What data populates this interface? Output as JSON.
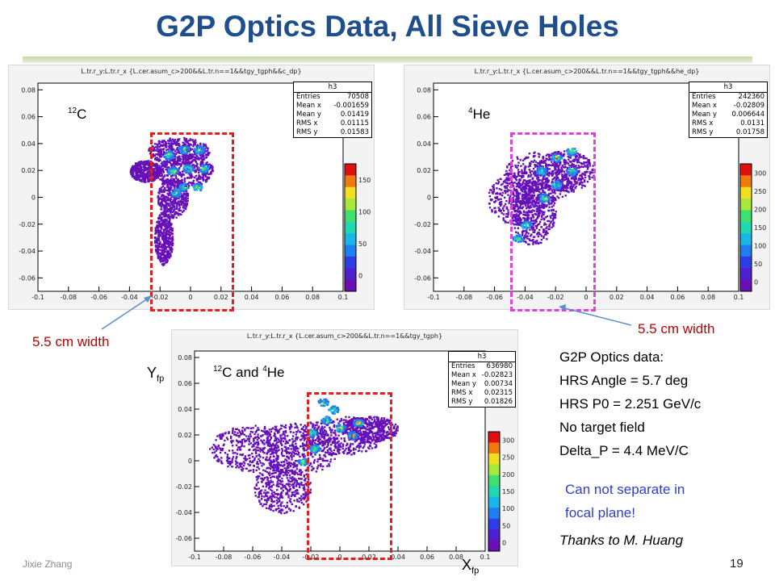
{
  "slide": {
    "title": "G2P Optics Data, All Sieve Holes",
    "author": "Jixie Zhang",
    "page_number": "19"
  },
  "plots": [
    {
      "id": "carbon",
      "header": "L.tr.r_y:L.tr.r_x {L.cer.asum_c>200&&L.tr.n==1&&tgy_tgph&&c_dp}",
      "target_label": "C",
      "target_mass": "12",
      "stats": {
        "name": "h3",
        "rows": [
          [
            "Entries",
            "70508"
          ],
          [
            "Mean x",
            "-0.001659"
          ],
          [
            "Mean y",
            "0.01419"
          ],
          [
            "RMS x",
            "0.01115"
          ],
          [
            "RMS y",
            "0.01583"
          ]
        ]
      },
      "x_ticks": [
        "-0.1",
        "-0.08",
        "-0.06",
        "-0.04",
        "-0.02",
        "0",
        "0.02",
        "0.04",
        "0.06",
        "0.08",
        "0.1"
      ],
      "y_ticks": [
        "0.08",
        "0.06",
        "0.04",
        "0.02",
        "0",
        "-0.02",
        "-0.04",
        "-0.06"
      ],
      "z_ticks": [
        "150",
        "100",
        "50",
        "0"
      ]
    },
    {
      "id": "helium",
      "header": "L.tr.r_y:L.tr.r_x {L.cer.asum_c>200&&L.tr.n==1&&tgy_tgph&&he_dp}",
      "target_label": "He",
      "target_mass": "4",
      "stats": {
        "name": "h3",
        "rows": [
          [
            "Entries",
            "242360"
          ],
          [
            "Mean x",
            "-0.02809"
          ],
          [
            "Mean y",
            "0.006644"
          ],
          [
            "RMS x",
            "0.0131"
          ],
          [
            "RMS y",
            "0.01758"
          ]
        ]
      },
      "x_ticks": [
        "-0.1",
        "-0.08",
        "-0.06",
        "-0.04",
        "-0.02",
        "0",
        "0.02",
        "0.04",
        "0.06",
        "0.08",
        "0.1"
      ],
      "y_ticks": [
        "0.08",
        "0.06",
        "0.04",
        "0.02",
        "0",
        "-0.02",
        "-0.04",
        "-0.06"
      ],
      "z_ticks": [
        "300",
        "250",
        "200",
        "150",
        "100",
        "50",
        "0"
      ]
    },
    {
      "id": "combined",
      "header": "L.tr.r_y:L.tr.r_x {L.cer.asum_c>200&&L.tr.n==1&&tgy_tgph}",
      "target_label_a": "C and ",
      "target_mass_a": "12",
      "target_label_b": "He",
      "target_mass_b": "4",
      "stats": {
        "name": "h3",
        "rows": [
          [
            "Entries",
            "636980"
          ],
          [
            "Mean x",
            "-0.02823"
          ],
          [
            "Mean y",
            "0.00734"
          ],
          [
            "RMS x",
            "0.02315"
          ],
          [
            "RMS y",
            "0.01826"
          ]
        ]
      },
      "x_ticks": [
        "-0.1",
        "-0.08",
        "-0.06",
        "-0.04",
        "-0.02",
        "0",
        "0.02",
        "0.04",
        "0.06",
        "0.08",
        "0.1"
      ],
      "y_ticks": [
        "0.08",
        "0.06",
        "0.04",
        "0.02",
        "0",
        "-0.02",
        "-0.04",
        "-0.06"
      ],
      "z_ticks": [
        "300",
        "250",
        "200",
        "150",
        "100",
        "50",
        "0"
      ]
    }
  ],
  "annotations": {
    "width_label_left": "5.5 cm width",
    "width_label_right": "5.5 cm width",
    "y_axis_main": "Y",
    "y_axis_sub": "fp",
    "x_axis_main": "X",
    "x_axis_sub": "fp"
  },
  "info": {
    "lines": [
      "G2P Optics data:",
      "HRS Angle = 5.7 deg",
      "HRS P0 = 2.251 GeV/c",
      "No target field",
      "Delta_P = 4.4 MeV/C"
    ],
    "note_lines": [
      "Can not separate in",
      "focal plane!"
    ],
    "thanks": "Thanks to M. Huang"
  },
  "colors": {
    "title": "#1f4e8c",
    "red_box": "#e02020",
    "magenta_box": "#e040e0",
    "note": "#2e3ec8",
    "arrow": "#5b8fc8"
  }
}
